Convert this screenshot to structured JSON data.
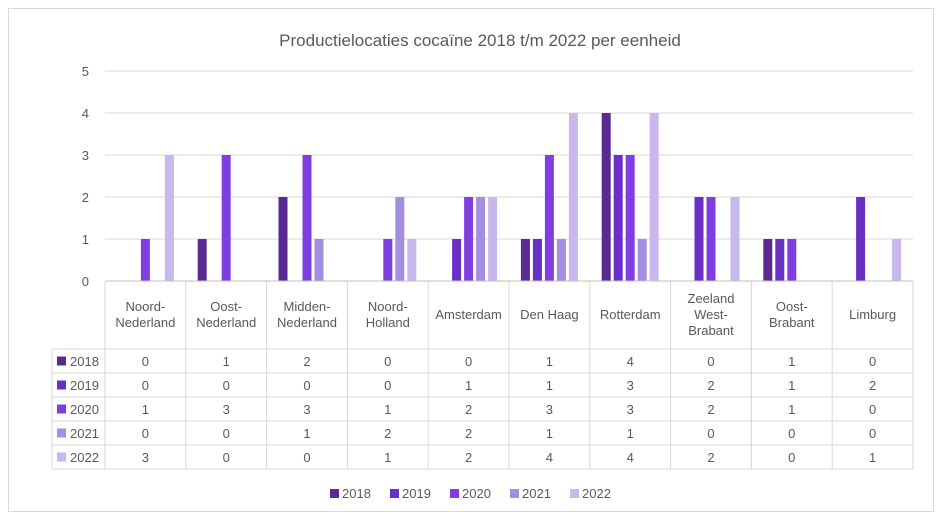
{
  "chart_data": {
    "type": "bar",
    "title": "Productielocaties cocaïne 2018 t/m 2022 per eenheid",
    "xlabel": "",
    "ylabel": "",
    "ylim": [
      0,
      5
    ],
    "yticks": [
      0,
      1,
      2,
      3,
      4,
      5
    ],
    "grid": true,
    "legend_position": "bottom",
    "data_table": true,
    "categories": [
      [
        "Noord-",
        "Nederland"
      ],
      [
        "Oost-",
        "Nederland"
      ],
      [
        "Midden-",
        "Nederland"
      ],
      [
        "Noord-",
        "Holland"
      ],
      [
        "Amsterdam"
      ],
      [
        "Den Haag"
      ],
      [
        "Rotterdam"
      ],
      [
        "Zeeland",
        "West-",
        "Brabant"
      ],
      [
        "Oost-",
        "Brabant"
      ],
      [
        "Limburg"
      ]
    ],
    "series": [
      {
        "name": "2018",
        "color": "#5b2a91",
        "values": [
          0,
          1,
          2,
          0,
          0,
          1,
          4,
          0,
          1,
          0
        ]
      },
      {
        "name": "2019",
        "color": "#6a2fc4",
        "values": [
          0,
          0,
          0,
          0,
          1,
          1,
          3,
          2,
          1,
          2
        ]
      },
      {
        "name": "2020",
        "color": "#7f3fe0",
        "values": [
          1,
          3,
          3,
          1,
          2,
          3,
          3,
          2,
          1,
          0
        ]
      },
      {
        "name": "2021",
        "color": "#a48ee0",
        "values": [
          0,
          0,
          1,
          2,
          2,
          1,
          1,
          0,
          0,
          0
        ]
      },
      {
        "name": "2022",
        "color": "#c9b8ee",
        "values": [
          3,
          0,
          0,
          1,
          2,
          4,
          4,
          2,
          0,
          1
        ]
      }
    ]
  }
}
